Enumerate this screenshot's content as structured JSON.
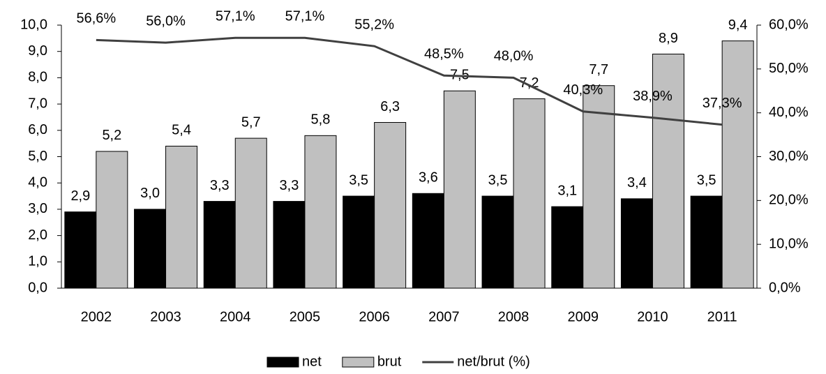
{
  "chart_data": {
    "type": "bar",
    "categories": [
      "2002",
      "2003",
      "2004",
      "2005",
      "2006",
      "2007",
      "2008",
      "2009",
      "2010",
      "2011"
    ],
    "series": [
      {
        "name": "net",
        "color": "#000000",
        "values": [
          2.9,
          3.0,
          3.3,
          3.3,
          3.5,
          3.6,
          3.5,
          3.1,
          3.4,
          3.5
        ],
        "value_labels": [
          "2,9",
          "3,0",
          "3,3",
          "3,3",
          "3,5",
          "3,6",
          "3,5",
          "3,1",
          "3,4",
          "3,5"
        ]
      },
      {
        "name": "brut",
        "color": "#c0c0c0",
        "values": [
          5.2,
          5.4,
          5.7,
          5.8,
          6.3,
          7.5,
          7.2,
          7.7,
          8.9,
          9.4
        ],
        "value_labels": [
          "5,2",
          "5,4",
          "5,7",
          "5,8",
          "6,3",
          "7,5",
          "7,2",
          "7,7",
          "8,9",
          "9,4"
        ]
      },
      {
        "name": "net/brut (%)",
        "type": "line",
        "axis": "y2",
        "color": "#404040",
        "values": [
          56.6,
          56.0,
          57.1,
          57.1,
          55.2,
          48.5,
          48.0,
          40.3,
          38.9,
          37.3
        ],
        "value_labels": [
          "56,6%",
          "56,0%",
          "57,1%",
          "57,1%",
          "55,2%",
          "48,5%",
          "48,0%",
          "40,3%",
          "38,9%",
          "37,3%"
        ]
      }
    ],
    "ylim": [
      0,
      10
    ],
    "yticks": [
      {
        "value": 0,
        "label": "0,0"
      },
      {
        "value": 1,
        "label": "1,0"
      },
      {
        "value": 2,
        "label": "2,0"
      },
      {
        "value": 3,
        "label": "3,0"
      },
      {
        "value": 4,
        "label": "4,0"
      },
      {
        "value": 5,
        "label": "5,0"
      },
      {
        "value": 6,
        "label": "6,0"
      },
      {
        "value": 7,
        "label": "7,0"
      },
      {
        "value": 8,
        "label": "8,0"
      },
      {
        "value": 9,
        "label": "9,0"
      },
      {
        "value": 10,
        "label": "10,0"
      }
    ],
    "y2lim": [
      0,
      60
    ],
    "y2ticks": [
      {
        "value": 0,
        "label": "0,0%"
      },
      {
        "value": 10,
        "label": "10,0%"
      },
      {
        "value": 20,
        "label": "20,0%"
      },
      {
        "value": 30,
        "label": "30,0%"
      },
      {
        "value": 40,
        "label": "40,0%"
      },
      {
        "value": 50,
        "label": "50,0%"
      },
      {
        "value": 60,
        "label": "60,0%"
      }
    ],
    "grid": false,
    "legend": "bottom"
  }
}
